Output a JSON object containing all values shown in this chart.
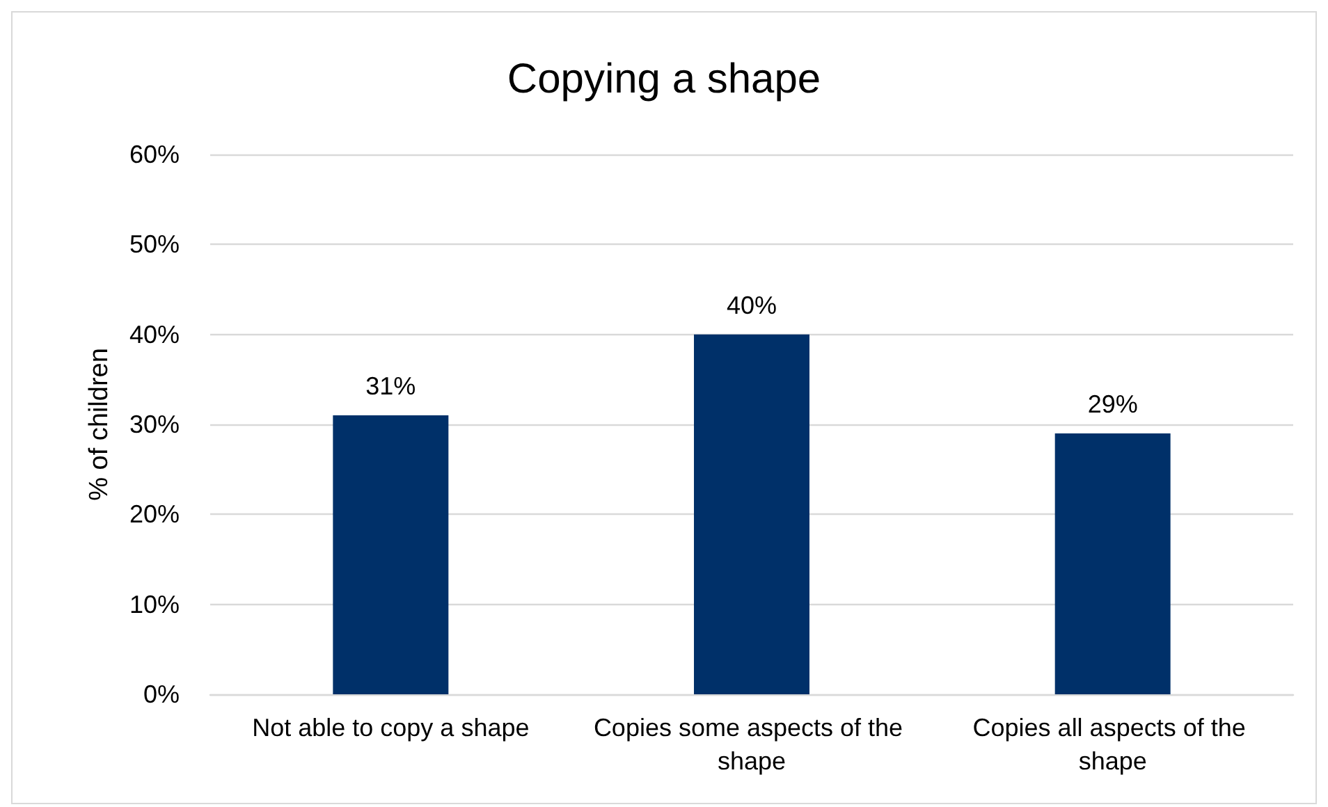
{
  "chart_data": {
    "type": "bar",
    "title": "Copying a shape",
    "ylabel": "% of children",
    "categories": [
      "Not able to copy a shape",
      "Copies some aspects of the shape",
      "Copies all aspects of the shape"
    ],
    "values": [
      31,
      40,
      29
    ],
    "value_labels": [
      "31%",
      "40%",
      "29%"
    ],
    "color": "#003069",
    "ylim": [
      0,
      60
    ],
    "yticks": [
      {
        "value": 0,
        "label": "0%"
      },
      {
        "value": 10,
        "label": "10%"
      },
      {
        "value": 20,
        "label": "20%"
      },
      {
        "value": 30,
        "label": "30%"
      },
      {
        "value": 40,
        "label": "40%"
      },
      {
        "value": 50,
        "label": "50%"
      },
      {
        "value": 60,
        "label": "60%"
      }
    ],
    "grid": "y"
  }
}
